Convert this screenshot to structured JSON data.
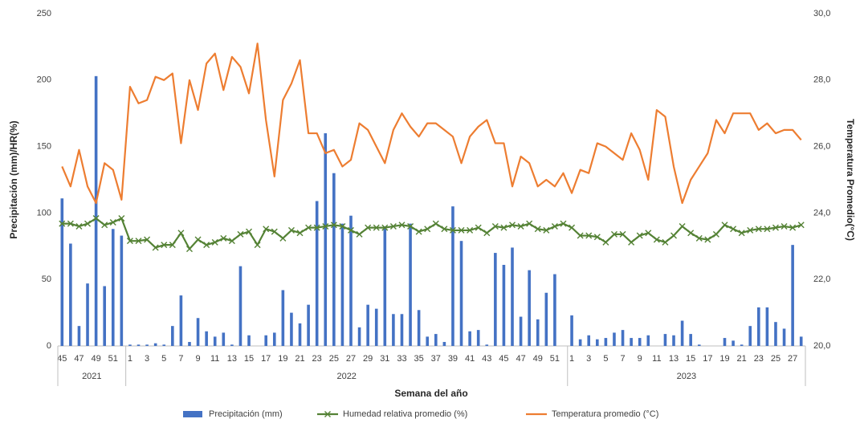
{
  "chart_data": {
    "type": "combo",
    "x_label": "Semana del año",
    "y_label": "Precipitación (mm)/HR(%)",
    "y2_label": "Temperatura Promedio(°C)",
    "category_groups": [
      {
        "name": "2021",
        "categories": [
          "45",
          null,
          "47",
          null,
          "49",
          null,
          "51",
          null
        ]
      },
      {
        "name": "2022",
        "categories": [
          "1",
          null,
          "3",
          null,
          "5",
          null,
          "7",
          null,
          "9",
          null,
          "11",
          null,
          "13",
          null,
          "15",
          null,
          "17",
          null,
          "19",
          null,
          "21",
          null,
          "23",
          null,
          "25",
          null,
          "27",
          null,
          "29",
          null,
          "31",
          null,
          "33",
          null,
          "35",
          null,
          "37",
          null,
          "39",
          null,
          "41",
          null,
          "43",
          null,
          "45",
          null,
          "47",
          null,
          "49",
          null,
          "51",
          null
        ]
      },
      {
        "name": "2023",
        "categories": [
          "1",
          null,
          "3",
          null,
          "5",
          null,
          "7",
          null,
          "9",
          null,
          "11",
          null,
          "13",
          null,
          "15",
          null,
          "17",
          null,
          "19",
          null,
          "21",
          null,
          "23",
          null,
          "25",
          null,
          "27",
          null
        ]
      }
    ],
    "ylim": [
      0,
      250
    ],
    "yticks": [
      0,
      50,
      100,
      150,
      200,
      250
    ],
    "y2lim": [
      20,
      30
    ],
    "y2ticks": [
      {
        "value": 20,
        "label": "20,0"
      },
      {
        "value": 22,
        "label": "22,0"
      },
      {
        "value": 24,
        "label": "24,0"
      },
      {
        "value": 26,
        "label": "26,0"
      },
      {
        "value": 28,
        "label": "28,0"
      },
      {
        "value": 30,
        "label": "30,0"
      }
    ],
    "grid": false,
    "series": [
      {
        "name": "Precipitación (mm)",
        "type": "bar",
        "color": "#4472c4",
        "values": [
          111,
          77,
          15,
          47,
          203,
          45,
          88,
          83,
          1,
          1,
          1,
          2,
          1,
          15,
          38,
          3,
          21,
          11,
          7,
          10,
          1,
          60,
          8,
          0,
          8,
          10,
          42,
          25,
          17,
          31,
          109,
          160,
          130,
          92,
          98,
          14,
          31,
          28,
          90,
          24,
          24,
          92,
          27,
          7,
          9,
          3,
          105,
          79,
          11,
          12,
          1,
          70,
          61,
          74,
          22,
          57,
          20,
          40,
          54,
          0,
          23,
          5,
          8,
          5,
          6,
          10,
          12,
          6,
          6,
          8,
          0,
          9,
          8,
          19,
          9,
          1,
          0,
          0,
          6,
          4,
          1,
          15,
          29,
          29,
          18,
          13,
          76,
          7
        ]
      },
      {
        "name": "Humedad relativa promedio (%)",
        "type": "line-marker",
        "color": "#548235",
        "values": [
          92,
          92,
          90,
          92,
          96,
          91,
          93,
          96,
          79,
          79,
          80,
          74,
          76,
          76,
          85,
          73,
          80,
          76,
          78,
          81,
          79,
          84,
          86,
          76,
          88,
          86,
          81,
          87,
          85,
          89,
          89,
          90,
          91,
          90,
          87,
          84,
          89,
          89,
          89,
          90,
          91,
          90,
          86,
          88,
          92,
          88,
          87,
          87,
          87,
          89,
          85,
          90,
          89,
          91,
          90,
          92,
          88,
          87,
          90,
          92,
          89,
          83,
          83,
          82,
          78,
          84,
          84,
          78,
          83,
          85,
          80,
          78,
          83,
          90,
          85,
          81,
          80,
          84,
          91,
          88,
          85,
          87,
          88,
          88,
          89,
          90,
          89,
          91
        ]
      },
      {
        "name": "Temperatura promedio (°C)",
        "type": "line",
        "axis": "y2",
        "color": "#ed7d31",
        "values": [
          25.4,
          24.8,
          25.9,
          24.8,
          24.3,
          25.5,
          25.3,
          24.4,
          27.8,
          27.3,
          27.4,
          28.1,
          28.0,
          28.2,
          26.1,
          28.0,
          27.1,
          28.5,
          28.8,
          27.7,
          28.7,
          28.4,
          27.6,
          29.1,
          26.8,
          25.1,
          27.4,
          27.9,
          28.6,
          26.4,
          26.4,
          25.8,
          25.9,
          25.4,
          25.6,
          26.7,
          26.5,
          26.0,
          25.5,
          26.5,
          27.0,
          26.6,
          26.3,
          26.7,
          26.7,
          26.5,
          26.3,
          25.5,
          26.3,
          26.6,
          26.8,
          26.1,
          26.1,
          24.8,
          25.7,
          25.5,
          24.8,
          25.0,
          24.8,
          25.2,
          24.6,
          25.3,
          25.2,
          26.1,
          26.0,
          25.8,
          25.6,
          26.4,
          25.9,
          25.0,
          27.1,
          26.9,
          25.4,
          24.3,
          25.0,
          25.4,
          25.8,
          26.8,
          26.4,
          27.0,
          27.0,
          27.0,
          26.5,
          26.7,
          26.4,
          26.5,
          26.5,
          26.2
        ]
      }
    ]
  }
}
